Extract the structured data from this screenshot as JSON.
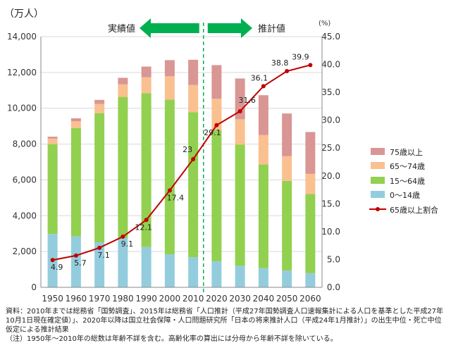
{
  "chart_data": {
    "type": "bar+line",
    "y_axis_unit": "（万人）",
    "y2_axis_unit": "(%)",
    "categories": [
      "1950",
      "1960",
      "1970",
      "1980",
      "1990",
      "2000",
      "2010",
      "2020",
      "2030",
      "2040",
      "2050",
      "2060"
    ],
    "ylim": [
      0,
      14000
    ],
    "yticks": [
      "0",
      "2,000",
      "4,000",
      "6,000",
      "8,000",
      "10,000",
      "12,000",
      "14,000"
    ],
    "y2lim": [
      0,
      45
    ],
    "y2ticks": [
      "0.0",
      "5.0",
      "10.0",
      "15.0",
      "20.0",
      "25.0",
      "30.0",
      "35.0",
      "40.0",
      "45.0"
    ],
    "stack_series": [
      {
        "name": "0～14歳",
        "color": "#93cddd",
        "values": [
          2979,
          2843,
          2515,
          2751,
          2249,
          1847,
          1680,
          1457,
          1204,
          1073,
          939,
          791
        ]
      },
      {
        "name": "15～64歳",
        "color": "#92d050",
        "values": [
          5017,
          6047,
          7212,
          7883,
          8590,
          8638,
          8103,
          7341,
          6773,
          5787,
          5001,
          4418
        ]
      },
      {
        "name": "65～74歳",
        "color": "#fac090",
        "values": [
          309,
          387,
          516,
          700,
          892,
          1301,
          1517,
          1733,
          1407,
          1645,
          1383,
          1128
        ]
      },
      {
        "name": "75歳以上",
        "color": "#d99694",
        "values": [
          107,
          163,
          224,
          366,
          597,
          901,
          1407,
          1879,
          2278,
          2223,
          2385,
          2336
        ]
      }
    ],
    "line_series": {
      "name": "65歳以上割合",
      "color": "#c00000",
      "values": [
        4.9,
        5.7,
        7.1,
        9.1,
        12.1,
        17.4,
        23.0,
        29.1,
        31.6,
        36.1,
        38.8,
        39.9
      ]
    },
    "line_labels": [
      "4.9",
      "5.7",
      "7.1",
      "9.1",
      "12.1",
      "17.4",
      "23",
      "29.1",
      "31.6",
      "36.1",
      "38.8",
      "39.9"
    ],
    "legend_order": [
      "75歳以上",
      "65～74歳",
      "15～64歳",
      "0～14歳",
      "65歳以上割合"
    ],
    "legend_position": "right",
    "actual_label": "実績値",
    "projection_label": "推計値",
    "arrow_color": "#00b050",
    "divider_color": "#00b050",
    "grid": true
  },
  "notes": [
    "資料：2010年までは総務省「国勢調査」、2015年は総務省「人口推計（平成27年国勢調査人口速報集計による人口を基準とした平成27年10月1日現在確定値）」、2020年以降は国立社会保障・人口問題研究所「日本の将来推計人口（平成24年1月推計）」の出生中位・死亡中位仮定による推計結果",
    "（注）1950年～2010年の総数は年齢不詳を含む。高齢化率の算出には分母から年齢不詳を除いている。"
  ]
}
